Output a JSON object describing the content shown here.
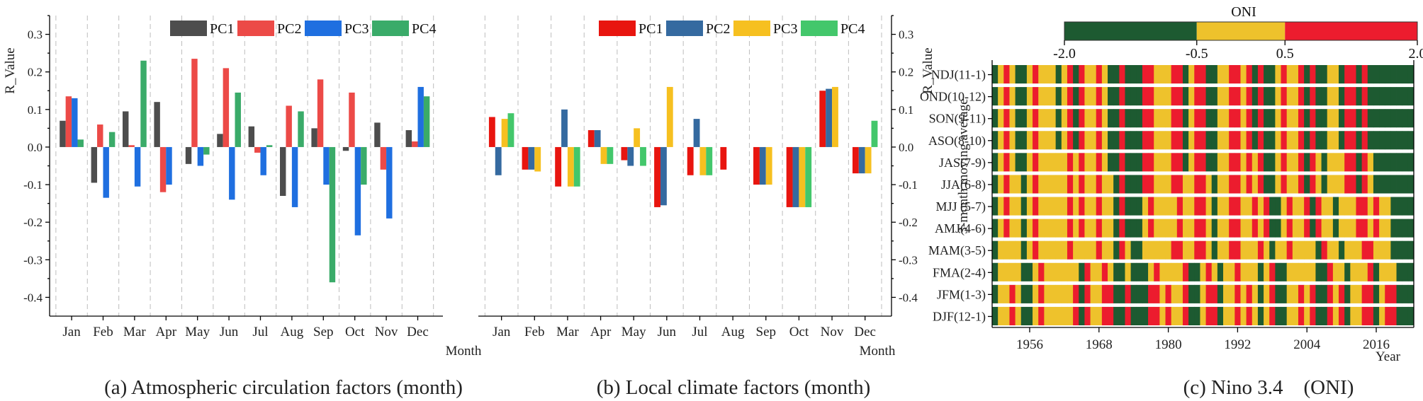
{
  "chart_data": [
    {
      "type": "bar",
      "title": "(a) Atmospheric circulation factors (month)",
      "ylabel": "R_Value",
      "xlabel": "Month",
      "ylim": [
        -0.45,
        0.35
      ],
      "yticks": [
        "0.3",
        "0.2",
        "0.1",
        "0.0",
        "-0.1",
        "-0.2",
        "-0.3",
        "-0.4"
      ],
      "categories": [
        "Jan",
        "Feb",
        "Mar",
        "Apr",
        "May",
        "Jun",
        "Jul",
        "Aug",
        "Sep",
        "Oct",
        "Nov",
        "Dec"
      ],
      "series": [
        {
          "name": "PC1",
          "color": "#4d4d4d",
          "values": [
            0.07,
            -0.095,
            0.095,
            0.12,
            -0.045,
            0.035,
            0.055,
            -0.13,
            0.05,
            -0.01,
            0.065,
            0.045
          ]
        },
        {
          "name": "PC2",
          "color": "#ec4a47",
          "values": [
            0.135,
            0.06,
            0.005,
            -0.12,
            0.235,
            0.21,
            -0.015,
            0.11,
            0.18,
            0.145,
            -0.06,
            0.015
          ]
        },
        {
          "name": "PC3",
          "color": "#1f6fe0",
          "values": [
            0.13,
            -0.135,
            -0.105,
            -0.1,
            -0.05,
            -0.14,
            -0.075,
            -0.16,
            -0.1,
            -0.235,
            -0.19,
            0.16
          ]
        },
        {
          "name": "PC4",
          "color": "#3aab69",
          "values": [
            0.02,
            0.04,
            0.23,
            0.0,
            -0.02,
            0.145,
            0.005,
            0.095,
            -0.36,
            -0.1,
            0.0,
            0.135
          ]
        }
      ]
    },
    {
      "type": "bar",
      "title": "(b) Local climate factors (month)",
      "ylabel": "R_Value",
      "xlabel": "Month",
      "ylim": [
        -0.45,
        0.35
      ],
      "yticks": [
        "0.3",
        "0.2",
        "0.1",
        "0.0",
        "-0.1",
        "-0.2",
        "-0.3",
        "-0.4"
      ],
      "categories": [
        "Jan",
        "Feb",
        "Mar",
        "Apr",
        "May",
        "Jun",
        "Jul",
        "Aug",
        "Sep",
        "Oct",
        "Nov",
        "Dec"
      ],
      "series": [
        {
          "name": "PC1",
          "color": "#e8150f",
          "values": [
            0.08,
            -0.06,
            -0.105,
            0.045,
            -0.035,
            -0.16,
            -0.075,
            -0.06,
            -0.1,
            -0.16,
            0.15,
            -0.07
          ]
        },
        {
          "name": "PC2",
          "color": "#356aa0",
          "values": [
            -0.075,
            -0.06,
            0.1,
            0.045,
            -0.05,
            -0.155,
            0.075,
            0.0,
            -0.1,
            -0.16,
            0.155,
            -0.07
          ]
        },
        {
          "name": "PC3",
          "color": "#f6c020",
          "values": [
            0.075,
            -0.065,
            -0.105,
            -0.045,
            0.05,
            0.16,
            -0.075,
            0.0,
            -0.1,
            -0.16,
            0.16,
            -0.07
          ]
        },
        {
          "name": "PC4",
          "color": "#43c76b",
          "values": [
            0.09,
            0.0,
            -0.105,
            -0.045,
            -0.05,
            0.0,
            -0.075,
            0.0,
            0.0,
            -0.16,
            0.0,
            0.07
          ]
        }
      ]
    },
    {
      "type": "heatmap",
      "title": "(c) Nino 3.4    (ONI)",
      "colorbar_title": "ONI",
      "colorbar_ticks": [
        "-2.0",
        "-0.5",
        "0.5",
        "2.0"
      ],
      "colors": {
        "la_nina": "#1d5a31",
        "neutral": "#eec22c",
        "el_nino": "#ec1c2e"
      },
      "ylabel": "3-month moving average",
      "xlabel": "Year",
      "xticks": [
        "1956",
        "1968",
        "1980",
        "1992",
        "2004",
        "2016"
      ],
      "year_range": [
        1950,
        2022
      ],
      "rows": [
        "NDJ(11-1)",
        "OND(10-12)",
        "SON(9-11)",
        "ASO(8-10)",
        "JAS(7-9)",
        "JJA(6-8)",
        "MJJ (5-7)",
        "AMJ(4-6)",
        "MAM(3-5)",
        "FMA(2-4)",
        "JFM(1-3)",
        "DJF(12-1)"
      ],
      "state_legend": "values per year: 0 = La Nina (ONI <= -0.5), 1 = neutral, 2 = El Nino (ONI >= 0.5)",
      "states": {
        "DJF(12-1)": [
          0,
          1,
          1,
          2,
          1,
          0,
          0,
          1,
          2,
          1,
          1,
          1,
          1,
          1,
          2,
          0,
          2,
          1,
          1,
          2,
          2,
          0,
          0,
          2,
          0,
          0,
          0,
          2,
          2,
          1,
          2,
          1,
          1,
          2,
          0,
          0,
          1,
          2,
          2,
          0,
          1,
          1,
          2,
          1,
          2,
          1,
          0,
          1,
          2,
          0,
          0,
          1,
          1,
          2,
          1,
          2,
          0,
          0,
          2,
          1,
          2,
          0,
          1,
          1,
          2,
          2,
          0,
          1,
          2,
          2,
          0,
          0,
          0
        ],
        "JFM(1-3)": [
          0,
          1,
          1,
          2,
          1,
          0,
          0,
          1,
          2,
          1,
          1,
          1,
          1,
          1,
          2,
          0,
          2,
          1,
          1,
          2,
          2,
          0,
          0,
          2,
          0,
          0,
          0,
          2,
          2,
          1,
          2,
          1,
          1,
          2,
          0,
          0,
          1,
          2,
          2,
          0,
          1,
          1,
          2,
          1,
          2,
          1,
          0,
          1,
          2,
          0,
          0,
          1,
          1,
          2,
          1,
          2,
          0,
          0,
          2,
          1,
          2,
          0,
          1,
          1,
          2,
          2,
          0,
          1,
          2,
          2,
          0,
          0,
          0
        ],
        "FMA(2-4)": [
          0,
          1,
          1,
          1,
          1,
          0,
          0,
          1,
          2,
          1,
          1,
          1,
          1,
          1,
          1,
          0,
          2,
          1,
          1,
          2,
          1,
          0,
          0,
          1,
          0,
          0,
          0,
          1,
          2,
          1,
          1,
          1,
          1,
          2,
          0,
          0,
          1,
          2,
          1,
          0,
          1,
          1,
          2,
          1,
          1,
          1,
          0,
          1,
          2,
          0,
          0,
          1,
          1,
          1,
          1,
          1,
          0,
          0,
          2,
          1,
          1,
          0,
          1,
          1,
          1,
          2,
          0,
          1,
          1,
          1,
          0,
          0,
          0
        ],
        "MAM(3-5)": [
          0,
          1,
          1,
          1,
          1,
          0,
          1,
          2,
          1,
          1,
          1,
          1,
          1,
          2,
          1,
          1,
          1,
          1,
          2,
          1,
          1,
          0,
          2,
          1,
          0,
          0,
          1,
          1,
          1,
          1,
          1,
          2,
          2,
          1,
          1,
          2,
          2,
          1,
          0,
          1,
          1,
          2,
          2,
          1,
          1,
          1,
          2,
          1,
          0,
          1,
          1,
          2,
          1,
          1,
          1,
          1,
          0,
          2,
          1,
          1,
          0,
          1,
          1,
          1,
          2,
          2,
          1,
          1,
          1,
          0,
          0,
          0,
          0
        ],
        "AMJ(4-6)": [
          0,
          1,
          2,
          1,
          1,
          0,
          1,
          2,
          1,
          1,
          1,
          1,
          1,
          2,
          1,
          2,
          1,
          1,
          2,
          1,
          1,
          0,
          2,
          0,
          0,
          0,
          1,
          2,
          1,
          1,
          1,
          1,
          2,
          1,
          1,
          2,
          2,
          1,
          0,
          1,
          1,
          2,
          2,
          1,
          1,
          2,
          1,
          2,
          0,
          0,
          1,
          2,
          1,
          1,
          2,
          0,
          2,
          1,
          1,
          0,
          1,
          1,
          1,
          2,
          2,
          1,
          2,
          1,
          1,
          0,
          0,
          0,
          0
        ],
        "MJJ (5-7)": [
          0,
          1,
          2,
          1,
          1,
          0,
          1,
          2,
          1,
          1,
          1,
          1,
          1,
          2,
          1,
          2,
          1,
          1,
          2,
          1,
          1,
          0,
          2,
          0,
          0,
          0,
          1,
          2,
          1,
          1,
          1,
          1,
          2,
          1,
          1,
          2,
          2,
          1,
          0,
          1,
          1,
          2,
          2,
          1,
          1,
          2,
          1,
          2,
          0,
          0,
          1,
          2,
          1,
          1,
          2,
          0,
          2,
          1,
          1,
          0,
          1,
          1,
          1,
          2,
          2,
          1,
          2,
          1,
          1,
          0,
          0,
          0,
          0
        ],
        "JJA(6-8)": [
          0,
          1,
          2,
          1,
          1,
          0,
          1,
          2,
          1,
          1,
          1,
          1,
          1,
          2,
          1,
          2,
          1,
          1,
          2,
          1,
          1,
          0,
          2,
          0,
          0,
          0,
          2,
          2,
          1,
          1,
          1,
          2,
          2,
          1,
          1,
          2,
          2,
          1,
          0,
          1,
          1,
          2,
          2,
          1,
          2,
          1,
          2,
          0,
          0,
          1,
          2,
          1,
          1,
          2,
          0,
          2,
          1,
          0,
          1,
          1,
          1,
          2,
          2,
          0,
          2,
          1,
          0,
          0,
          0,
          0,
          0,
          0,
          0
        ],
        "JAS(7-9)": [
          0,
          1,
          2,
          1,
          0,
          0,
          1,
          2,
          1,
          1,
          1,
          1,
          1,
          2,
          1,
          2,
          1,
          1,
          2,
          1,
          0,
          0,
          2,
          0,
          0,
          0,
          2,
          2,
          1,
          1,
          1,
          2,
          2,
          0,
          1,
          2,
          2,
          0,
          0,
          1,
          1,
          2,
          2,
          1,
          2,
          1,
          2,
          0,
          0,
          1,
          2,
          1,
          1,
          2,
          0,
          2,
          1,
          0,
          1,
          1,
          1,
          2,
          2,
          0,
          2,
          1,
          0,
          0,
          0,
          0,
          0,
          0,
          0
        ],
        "ASO(8-10)": [
          0,
          1,
          2,
          1,
          0,
          0,
          1,
          2,
          1,
          1,
          1,
          0,
          1,
          2,
          0,
          2,
          1,
          1,
          2,
          1,
          0,
          0,
          2,
          0,
          0,
          0,
          2,
          2,
          1,
          1,
          1,
          2,
          2,
          0,
          1,
          2,
          2,
          0,
          0,
          1,
          1,
          2,
          2,
          1,
          2,
          0,
          2,
          0,
          0,
          1,
          2,
          1,
          1,
          2,
          0,
          2,
          0,
          0,
          1,
          1,
          0,
          2,
          2,
          0,
          2,
          0,
          0,
          0,
          0,
          0,
          0,
          0,
          0
        ],
        "SON(9-11)": [
          0,
          1,
          2,
          1,
          0,
          0,
          1,
          2,
          1,
          1,
          1,
          0,
          1,
          2,
          0,
          2,
          1,
          1,
          2,
          1,
          0,
          0,
          2,
          0,
          0,
          0,
          2,
          2,
          1,
          1,
          1,
          2,
          2,
          0,
          1,
          2,
          2,
          0,
          0,
          1,
          1,
          2,
          2,
          1,
          2,
          0,
          2,
          0,
          0,
          1,
          2,
          1,
          1,
          2,
          0,
          2,
          0,
          0,
          1,
          1,
          0,
          2,
          2,
          0,
          2,
          0,
          0,
          0,
          0,
          0,
          0,
          0,
          0
        ],
        "OND(10-12)": [
          0,
          1,
          2,
          1,
          0,
          0,
          1,
          2,
          1,
          1,
          1,
          0,
          1,
          2,
          0,
          2,
          1,
          1,
          2,
          1,
          0,
          0,
          2,
          0,
          0,
          0,
          2,
          2,
          1,
          1,
          1,
          2,
          2,
          0,
          1,
          2,
          2,
          0,
          0,
          1,
          1,
          2,
          2,
          1,
          2,
          0,
          2,
          0,
          0,
          1,
          2,
          1,
          1,
          2,
          0,
          2,
          0,
          0,
          1,
          1,
          0,
          2,
          2,
          0,
          2,
          0,
          0,
          0,
          0,
          0,
          0,
          0,
          0
        ],
        "NDJ(11-1)": [
          0,
          1,
          2,
          1,
          0,
          0,
          1,
          2,
          1,
          1,
          1,
          0,
          1,
          2,
          0,
          2,
          1,
          1,
          2,
          1,
          0,
          0,
          2,
          0,
          0,
          0,
          2,
          2,
          1,
          1,
          1,
          2,
          2,
          0,
          1,
          2,
          2,
          0,
          0,
          1,
          1,
          2,
          2,
          1,
          2,
          0,
          2,
          0,
          0,
          1,
          2,
          1,
          1,
          2,
          0,
          2,
          0,
          0,
          1,
          1,
          0,
          2,
          2,
          0,
          2,
          0,
          0,
          0,
          0,
          0,
          0,
          0,
          0
        ]
      }
    }
  ],
  "captions": {
    "a": "(a) Atmospheric circulation factors (month)",
    "b": "(b) Local climate factors (month)",
    "c": "(c) Nino 3.4    (ONI)"
  }
}
